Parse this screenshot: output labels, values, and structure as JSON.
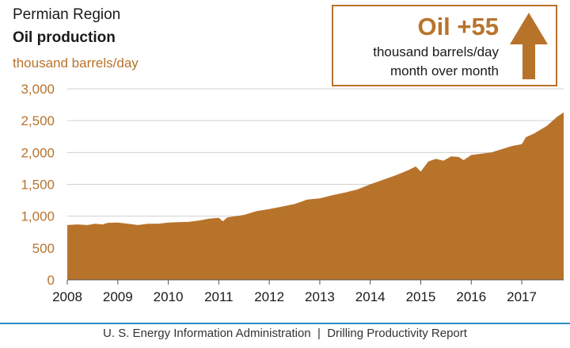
{
  "header": {
    "region": "Permian Region",
    "title": "Oil production",
    "unit": "thousand barrels/day"
  },
  "callout": {
    "value": "Oil +55",
    "line1": "thousand barrels/day",
    "line2": "month over month",
    "icon": "up-arrow-icon"
  },
  "footer": {
    "text": "U. S. Energy Information Administration  |  Drilling Productivity Report"
  },
  "colors": {
    "area": "#b8732b",
    "text": "#1a1a1a",
    "grid": "#d0d0d0",
    "footer_rule": "#2a8fc4"
  },
  "chart_data": {
    "type": "area",
    "title": "Oil production",
    "ylabel": "thousand barrels/day",
    "xlabel": "",
    "ylim": [
      0,
      3000
    ],
    "yticks": [
      0,
      500,
      1000,
      1500,
      2000,
      2500,
      3000
    ],
    "ytick_labels": [
      "0",
      "500",
      "1,000",
      "1,500",
      "2,000",
      "2,500",
      "3,000"
    ],
    "xlim": [
      2008.0,
      2017.83
    ],
    "xticks": [
      2008,
      2009,
      2010,
      2011,
      2012,
      2013,
      2014,
      2015,
      2016,
      2017
    ],
    "xtick_labels": [
      "2008",
      "2009",
      "2010",
      "2011",
      "2012",
      "2013",
      "2014",
      "2015",
      "2016",
      "2017"
    ],
    "grid": true,
    "series": [
      {
        "x": [
          2008.0,
          2008.2,
          2008.4,
          2008.55,
          2008.7,
          2008.8,
          2009.0,
          2009.2,
          2009.4,
          2009.6,
          2009.8,
          2010.0,
          2010.2,
          2010.4,
          2010.6,
          2010.8,
          2011.0,
          2011.08,
          2011.17,
          2011.25,
          2011.5,
          2011.75,
          2012.0,
          2012.25,
          2012.5,
          2012.75,
          2013.0,
          2013.25,
          2013.5,
          2013.75,
          2014.0,
          2014.25,
          2014.5,
          2014.75,
          2014.9,
          2015.0,
          2015.15,
          2015.3,
          2015.45,
          2015.6,
          2015.75,
          2015.85,
          2016.0,
          2016.2,
          2016.4,
          2016.6,
          2016.8,
          2017.0,
          2017.08,
          2017.25,
          2017.5,
          2017.7,
          2017.83
        ],
        "values": [
          860,
          870,
          860,
          880,
          870,
          895,
          900,
          880,
          860,
          880,
          880,
          900,
          905,
          910,
          930,
          960,
          975,
          920,
          980,
          990,
          1020,
          1080,
          1110,
          1150,
          1190,
          1260,
          1280,
          1330,
          1370,
          1420,
          1500,
          1570,
          1640,
          1720,
          1780,
          1700,
          1860,
          1900,
          1870,
          1940,
          1930,
          1880,
          1960,
          1980,
          2000,
          2050,
          2100,
          2130,
          2240,
          2300,
          2420,
          2560,
          2630
        ]
      }
    ]
  }
}
